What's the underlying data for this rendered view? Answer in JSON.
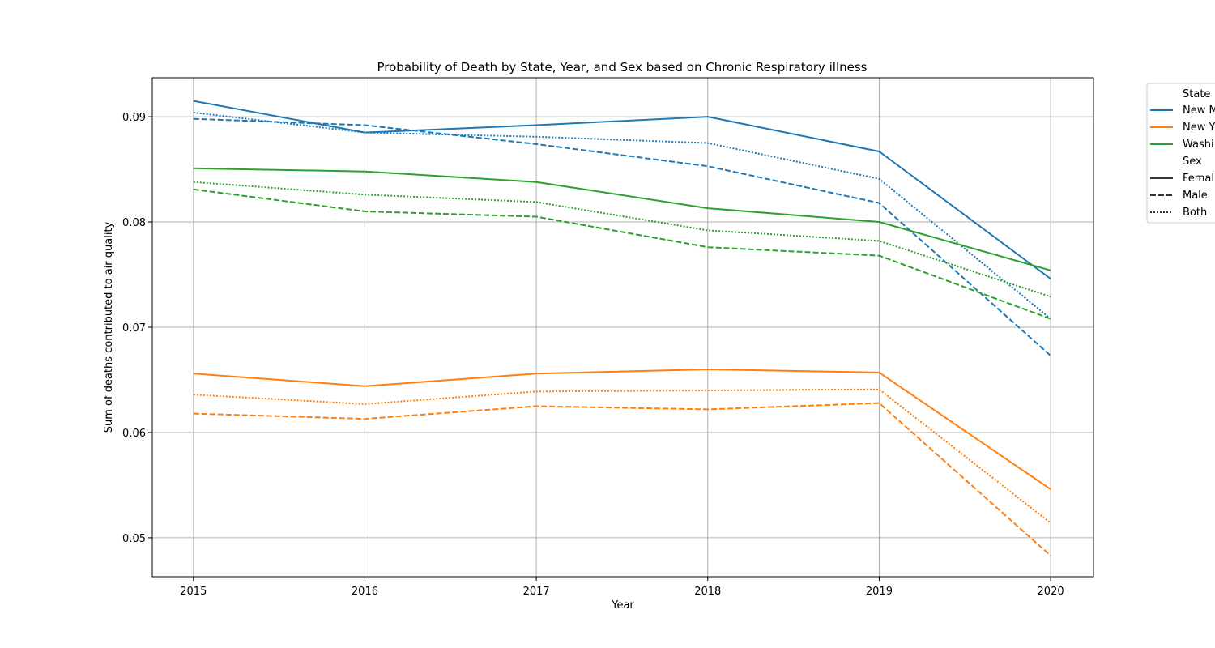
{
  "chart_data": {
    "type": "line",
    "title": "Probability of Death by State, Year, and Sex based on Chronic Respiratory illness",
    "xlabel": "Year",
    "ylabel": "Sum of deaths contributed to air quality",
    "x": [
      2015,
      2016,
      2017,
      2018,
      2019,
      2020
    ],
    "xlim": [
      2014.76,
      2020.25
    ],
    "ylim": [
      0.0463,
      0.0937
    ],
    "yticks": [
      0.05,
      0.06,
      0.07,
      0.08,
      0.09
    ],
    "yticks_text": [
      "0.05",
      "0.06",
      "0.07",
      "0.08",
      "0.09"
    ],
    "grid": true,
    "legend_position": "upper right, outside plot",
    "legend": {
      "state_title": "State",
      "states": [
        {
          "label": "New M",
          "color": "#1f77b4"
        },
        {
          "label": "New Y",
          "color": "#ff7f0e"
        },
        {
          "label": "Washi",
          "color": "#2ca02c"
        }
      ],
      "sex_title": "Sex",
      "sexes": [
        {
          "label": "Femal",
          "style": "solid"
        },
        {
          "label": "Male",
          "style": "dashed"
        },
        {
          "label": "Both",
          "style": "dotted"
        }
      ]
    },
    "series": [
      {
        "state": 0,
        "sex": 0,
        "color": "#1f77b4",
        "style": "solid",
        "values": [
          0.0915,
          0.0885,
          0.0892,
          0.09,
          0.0867,
          0.0746
        ]
      },
      {
        "state": 0,
        "sex": 1,
        "color": "#1f77b4",
        "style": "dashed",
        "values": [
          0.0898,
          0.0892,
          0.0874,
          0.0853,
          0.0818,
          0.0673
        ]
      },
      {
        "state": 0,
        "sex": 2,
        "color": "#1f77b4",
        "style": "dotted",
        "values": [
          0.0904,
          0.0885,
          0.0881,
          0.0875,
          0.0841,
          0.0708
        ]
      },
      {
        "state": 1,
        "sex": 0,
        "color": "#ff7f0e",
        "style": "solid",
        "values": [
          0.0656,
          0.0644,
          0.0656,
          0.066,
          0.0657,
          0.0546
        ]
      },
      {
        "state": 1,
        "sex": 1,
        "color": "#ff7f0e",
        "style": "dashed",
        "values": [
          0.0618,
          0.0613,
          0.0625,
          0.0622,
          0.0628,
          0.0483
        ]
      },
      {
        "state": 1,
        "sex": 2,
        "color": "#ff7f0e",
        "style": "dotted",
        "values": [
          0.0636,
          0.0627,
          0.0639,
          0.064,
          0.0641,
          0.0514
        ]
      },
      {
        "state": 2,
        "sex": 0,
        "color": "#2ca02c",
        "style": "solid",
        "values": [
          0.0851,
          0.0848,
          0.0838,
          0.0813,
          0.08,
          0.0754
        ]
      },
      {
        "state": 2,
        "sex": 1,
        "color": "#2ca02c",
        "style": "dashed",
        "values": [
          0.0831,
          0.081,
          0.0805,
          0.0776,
          0.0768,
          0.0708
        ]
      },
      {
        "state": 2,
        "sex": 2,
        "color": "#2ca02c",
        "style": "dotted",
        "values": [
          0.0838,
          0.0826,
          0.0819,
          0.0792,
          0.0782,
          0.0729
        ]
      }
    ]
  }
}
